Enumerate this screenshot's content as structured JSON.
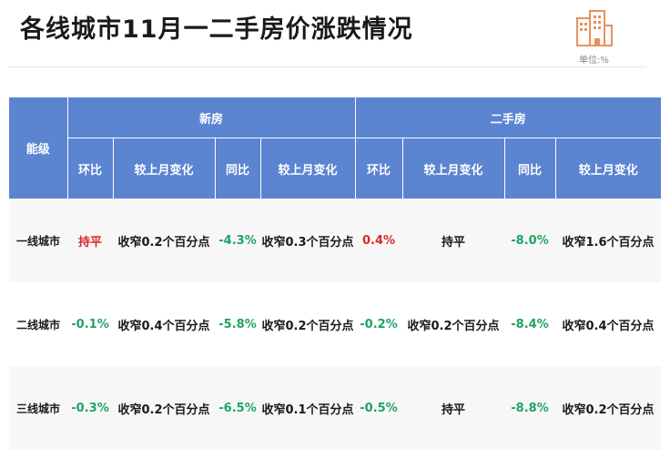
{
  "title": "各线城市11月一二手房价涨跌情况",
  "unit_label": "单位:%",
  "table": {
    "corner_label": "能级",
    "groups": [
      "新房",
      "二手房"
    ],
    "sub_headers": [
      "环比",
      "较上月变化",
      "同比",
      "较上月变化",
      "环比",
      "较上月变化",
      "同比",
      "较上月变化"
    ],
    "rows": [
      {
        "city": "一线城市",
        "cells": [
          "持平",
          "收窄0.2个百分点",
          "-4.3%",
          "收窄0.3个百分点",
          "0.4%",
          "持平",
          "-8.0%",
          "收窄1.6个百分点"
        ]
      },
      {
        "city": "二线城市",
        "cells": [
          "-0.1%",
          "收窄0.4个百分点",
          "-5.8%",
          "收窄0.2个百分点",
          "-0.2%",
          "收窄0.2个百分点",
          "-8.4%",
          "收窄0.4个百分点"
        ]
      },
      {
        "city": "三线城市",
        "cells": [
          "-0.3%",
          "收窄0.2个百分点",
          "-6.5%",
          "收窄0.1个百分点",
          "-0.5%",
          "持平",
          "-8.8%",
          "收窄0.2个百分点"
        ]
      }
    ]
  },
  "colors": {
    "header_bg": "#5b84d1",
    "up": "#d42b2b",
    "down": "#21a366",
    "logo": "#e8925a"
  },
  "icons": {
    "logo": "building-icon"
  }
}
